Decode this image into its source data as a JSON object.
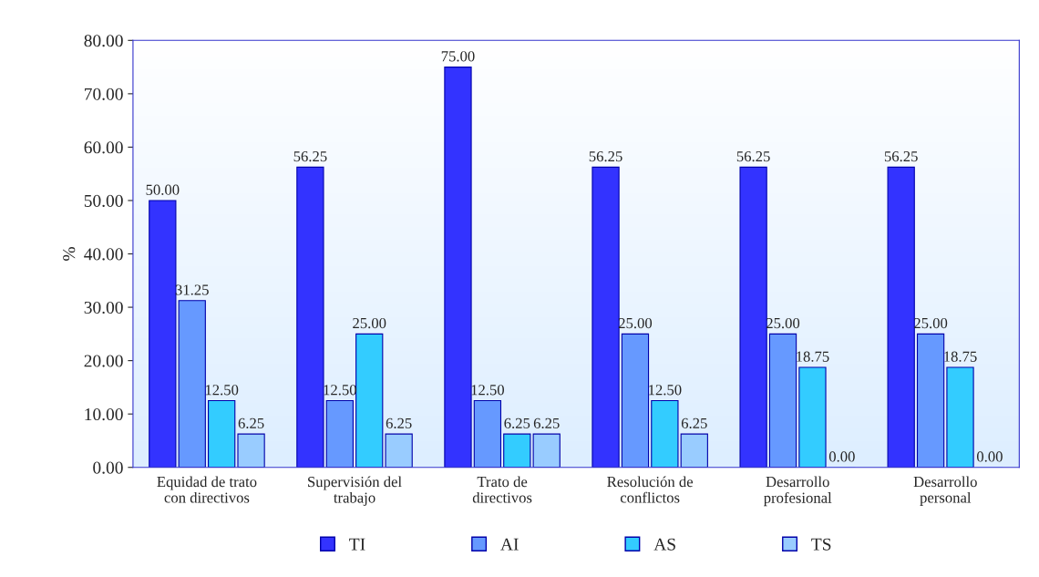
{
  "chart_data": {
    "type": "bar",
    "ylabel": "%",
    "categories": [
      "Equidad de trato\ncon directivos",
      "Supervisión del\ntrabajo",
      "Trato de\ndirectivos",
      "Resolución de\nconflictos",
      "Desarrollo\nprofesional",
      "Desarrollo\npersonal"
    ],
    "series": [
      {
        "name": "TI",
        "color": "#3333ff",
        "values": [
          50.0,
          56.25,
          75.0,
          56.25,
          56.25,
          56.25
        ],
        "value_labels": [
          "50.00",
          "56.25",
          "75.00",
          "56.25",
          "56.25",
          "56.25"
        ]
      },
      {
        "name": "AI",
        "color": "#6699ff",
        "values": [
          31.25,
          12.5,
          12.5,
          25.0,
          25.0,
          25.0
        ],
        "value_labels": [
          "31.25",
          "12.50",
          "12.50",
          "25.00",
          "25.00",
          "25.00"
        ]
      },
      {
        "name": "AS",
        "color": "#33ccff",
        "values": [
          12.5,
          25.0,
          6.25,
          12.5,
          18.75,
          18.75
        ],
        "value_labels": [
          "12.50",
          "25.00",
          "6.25",
          "12.50",
          "18.75",
          "18.75"
        ]
      },
      {
        "name": "TS",
        "color": "#99ccff",
        "values": [
          6.25,
          6.25,
          6.25,
          6.25,
          0.0,
          0.0
        ],
        "value_labels": [
          "6.25",
          "6.25",
          "6.25",
          "6.25",
          "0.00",
          "0.00"
        ]
      }
    ],
    "ylim": [
      0,
      80
    ],
    "yticks": [
      {
        "value": 0,
        "label": "0.00"
      },
      {
        "value": 10,
        "label": "10.00"
      },
      {
        "value": 20,
        "label": "20.00"
      },
      {
        "value": 30,
        "label": "30.00"
      },
      {
        "value": 40,
        "label": "40.00"
      },
      {
        "value": 50,
        "label": "50.00"
      },
      {
        "value": 60,
        "label": "60.00"
      },
      {
        "value": 70,
        "label": "70.00"
      },
      {
        "value": 80,
        "label": "80.00"
      }
    ],
    "grid": false,
    "legend": "bottom"
  }
}
